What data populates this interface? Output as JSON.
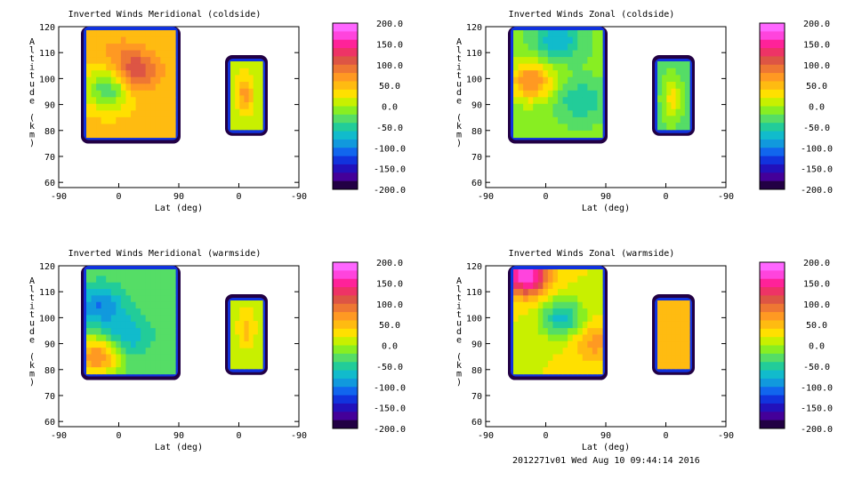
{
  "colorbar": {
    "levels": [
      200,
      180,
      160,
      140,
      120,
      100,
      80,
      60,
      40,
      20,
      0,
      -20,
      -40,
      -60,
      -80,
      -100,
      -120,
      -140,
      -160,
      -180,
      -200
    ],
    "tick_labels": [
      "200.0",
      "150.0",
      "100.0",
      "50.0",
      "0.0",
      "-50.0",
      "-100.0",
      "-150.0",
      "-200.0"
    ],
    "colors": [
      "#ff66ff",
      "#ff44dd",
      "#ff2299",
      "#ee3366",
      "#dd5544",
      "#ee7733",
      "#ff9922",
      "#ffbb11",
      "#ffe000",
      "#c8f000",
      "#88ee22",
      "#55dd66",
      "#22cc99",
      "#11bbcc",
      "#1199dd",
      "#1166ee",
      "#1133dd",
      "#2211bb",
      "#440099",
      "#220044"
    ]
  },
  "axis_common": {
    "ylabel": "Altitude (km)",
    "xlabel": "Lat (deg)",
    "y_ticks": [
      "120",
      "110",
      "100",
      "90",
      "80",
      "70",
      "60"
    ],
    "x_ticks": [
      "-90",
      "0",
      "90",
      "0",
      "-90"
    ],
    "ylim": [
      58,
      120
    ]
  },
  "chart_data": [
    {
      "type": "heatmap",
      "title": "Inverted Winds Meridional (coldside)",
      "xlabel": "Lat (deg)",
      "ylabel": "Altitude (km)",
      "ylim": [
        58,
        120
      ],
      "regions": [
        {
          "name": "left",
          "alt_range": [
            76,
            120
          ],
          "mean": 45,
          "features": [
            {
              "x": 0.25,
              "alt": 96,
              "value": -40
            },
            {
              "x": 0.55,
              "alt": 103,
              "value": 120
            },
            {
              "x": 0.35,
              "alt": 112,
              "value": 60
            }
          ]
        },
        {
          "name": "right",
          "alt_range": [
            79,
            108
          ],
          "mean": 10,
          "features": [
            {
              "x": 0.45,
              "alt": 94,
              "value": 70
            }
          ]
        }
      ]
    },
    {
      "type": "heatmap",
      "title": "Inverted Winds Zonal (coldside)",
      "xlabel": "Lat (deg)",
      "ylabel": "Altitude (km)",
      "ylim": [
        58,
        120
      ],
      "regions": [
        {
          "name": "left",
          "alt_range": [
            76,
            120
          ],
          "mean": -15,
          "features": [
            {
              "x": 0.2,
              "alt": 99,
              "value": 80
            },
            {
              "x": 0.75,
              "alt": 91,
              "value": -60
            },
            {
              "x": 0.5,
              "alt": 116,
              "value": -80
            }
          ]
        },
        {
          "name": "right",
          "alt_range": [
            79,
            108
          ],
          "mean": -25,
          "features": [
            {
              "x": 0.45,
              "alt": 92,
              "value": 30
            }
          ]
        }
      ]
    },
    {
      "type": "heatmap",
      "title": "Inverted Winds Meridional (warmside)",
      "xlabel": "Lat (deg)",
      "ylabel": "Altitude (km)",
      "ylim": [
        58,
        120
      ],
      "regions": [
        {
          "name": "left",
          "alt_range": [
            77,
            120
          ],
          "mean": -30,
          "features": [
            {
              "x": 0.12,
              "alt": 84,
              "value": 80
            },
            {
              "x": 0.45,
              "alt": 93,
              "value": -80
            },
            {
              "x": 0.15,
              "alt": 105,
              "value": -100
            }
          ]
        },
        {
          "name": "right",
          "alt_range": [
            79,
            108
          ],
          "mean": 10,
          "features": [
            {
              "x": 0.5,
              "alt": 96,
              "value": 50
            }
          ]
        }
      ]
    },
    {
      "type": "heatmap",
      "title": "Inverted Winds Zonal (warmside)",
      "xlabel": "Lat (deg)",
      "ylabel": "Altitude (km)",
      "ylim": [
        58,
        120
      ],
      "regions": [
        {
          "name": "left",
          "alt_range": [
            77,
            120
          ],
          "mean": 20,
          "features": [
            {
              "x": 0.15,
              "alt": 117,
              "value": 180
            },
            {
              "x": 0.55,
              "alt": 100,
              "value": -70
            },
            {
              "x": 0.9,
              "alt": 90,
              "value": 70
            }
          ]
        },
        {
          "name": "right",
          "alt_range": [
            79,
            108
          ],
          "mean": 40,
          "features": [
            {
              "x": 0.5,
              "alt": 88,
              "value": 60
            }
          ]
        }
      ]
    }
  ],
  "footer": "2012271v01 Wed Aug 10 09:44:14 2016"
}
